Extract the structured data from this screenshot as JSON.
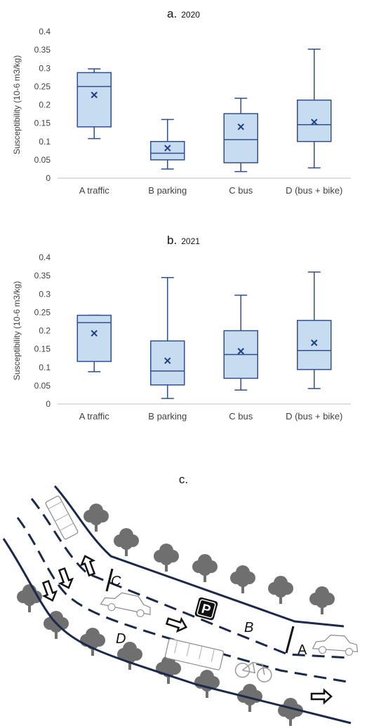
{
  "chart_data": [
    {
      "type": "box",
      "panel": "a.",
      "title": "2020",
      "ylabel": "Susceptibility (10-6 m3/kg)",
      "ylim": [
        0,
        0.4
      ],
      "yticks": [
        "0",
        "0.05",
        "0.1",
        "0.15",
        "0.2",
        "0.25",
        "0.3",
        "0.35",
        "0.4"
      ],
      "categories": [
        "A traffic",
        "B parking",
        "C bus",
        "D (bus + bike)"
      ],
      "boxes": [
        {
          "min": 0.108,
          "q1": 0.14,
          "median": 0.25,
          "q3": 0.288,
          "max": 0.298,
          "mean": 0.227
        },
        {
          "min": 0.025,
          "q1": 0.05,
          "median": 0.068,
          "q3": 0.1,
          "max": 0.16,
          "mean": 0.082
        },
        {
          "min": 0.018,
          "q1": 0.042,
          "median": 0.105,
          "q3": 0.176,
          "max": 0.218,
          "mean": 0.14
        },
        {
          "min": 0.028,
          "q1": 0.1,
          "median": 0.146,
          "q3": 0.213,
          "max": 0.352,
          "mean": 0.153
        }
      ]
    },
    {
      "type": "box",
      "panel": "b.",
      "title": "2021",
      "ylabel": "Susceptibility (10-6 m3/kg)",
      "ylim": [
        0,
        0.4
      ],
      "yticks": [
        "0",
        "0.05",
        "0.1",
        "0.15",
        "0.2",
        "0.25",
        "0.3",
        "0.35",
        "0.4"
      ],
      "categories": [
        "A traffic",
        "B parking",
        "C bus",
        "D (bus + bike)"
      ],
      "boxes": [
        {
          "min": 0.088,
          "q1": 0.116,
          "median": 0.222,
          "q3": 0.242,
          "max": 0.242,
          "mean": 0.193
        },
        {
          "min": 0.015,
          "q1": 0.052,
          "median": 0.09,
          "q3": 0.172,
          "max": 0.345,
          "mean": 0.118
        },
        {
          "min": 0.038,
          "q1": 0.07,
          "median": 0.135,
          "q3": 0.2,
          "max": 0.297,
          "mean": 0.144
        },
        {
          "min": 0.042,
          "q1": 0.094,
          "median": 0.146,
          "q3": 0.228,
          "max": 0.36,
          "mean": 0.167
        }
      ]
    }
  ],
  "diagram": {
    "panel": "c.",
    "zone_labels": [
      "A",
      "B",
      "C",
      "D"
    ],
    "parking_symbol": "P",
    "colors": {
      "road": "#1b2a4a",
      "tree": "#6f6f6f",
      "box_fill": "#c7dbf1",
      "box_stroke": "#2f4f8f"
    }
  }
}
